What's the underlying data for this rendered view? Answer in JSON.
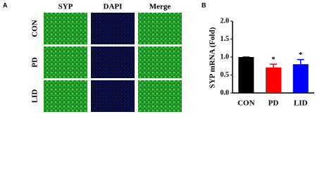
{
  "panel_a": {
    "label": "A",
    "columns": [
      "SYP",
      "DAPI",
      "Merge"
    ],
    "rows": [
      "CON",
      "PD",
      "LID"
    ]
  },
  "chart_data": {
    "type": "bar",
    "panel_label": "B",
    "y_label": "SYP mRNA (Fold)",
    "categories": [
      "CON",
      "PD",
      "LID"
    ],
    "values": [
      1.0,
      0.71,
      0.8
    ],
    "errors": [
      0,
      0.09,
      0.13
    ],
    "colors": [
      "#000000",
      "#ff0000",
      "#0000ff"
    ],
    "annotations": [
      null,
      "*",
      "*"
    ],
    "ylim": [
      0,
      2.0
    ],
    "yticks": [
      {
        "value": 0,
        "label": "0.0"
      },
      {
        "value": 0.5,
        "label": "0.5"
      },
      {
        "value": 1.0,
        "label": "1.0"
      },
      {
        "value": 1.5,
        "label": "1.5"
      },
      {
        "value": 2.0,
        "label": "2.0"
      }
    ]
  }
}
